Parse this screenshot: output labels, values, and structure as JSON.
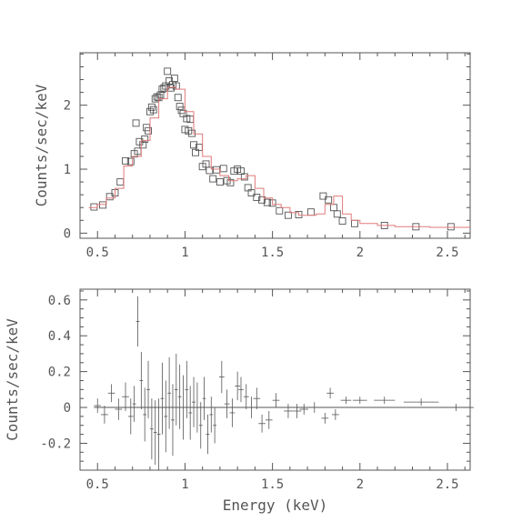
{
  "chart_data": [
    {
      "type": "scatter",
      "title": "",
      "xlabel": "",
      "ylabel": "Counts/sec/keV",
      "xlim": [
        0.4,
        2.63
      ],
      "ylim": [
        -0.08,
        2.82
      ],
      "xticks": [
        0.5,
        1,
        1.5,
        2,
        2.5
      ],
      "xtick_labels": [
        "0.5",
        "1",
        "1.5",
        "2",
        "2.5"
      ],
      "yticks": [
        0,
        1,
        2
      ],
      "ytick_labels": [
        "0",
        "1",
        "2"
      ],
      "series": [
        {
          "kind": "data-squares",
          "color": "#555555",
          "x": [
            0.48,
            0.53,
            0.57,
            0.6,
            0.63,
            0.66,
            0.69,
            0.71,
            0.72,
            0.73,
            0.74,
            0.76,
            0.77,
            0.78,
            0.79,
            0.8,
            0.81,
            0.82,
            0.83,
            0.84,
            0.85,
            0.86,
            0.87,
            0.88,
            0.89,
            0.9,
            0.91,
            0.92,
            0.93,
            0.94,
            0.95,
            0.96,
            0.97,
            0.98,
            0.99,
            1.0,
            1.01,
            1.02,
            1.03,
            1.04,
            1.05,
            1.06,
            1.08,
            1.1,
            1.12,
            1.14,
            1.16,
            1.18,
            1.2,
            1.22,
            1.24,
            1.26,
            1.28,
            1.3,
            1.32,
            1.34,
            1.36,
            1.38,
            1.41,
            1.44,
            1.47,
            1.5,
            1.54,
            1.59,
            1.65,
            1.72,
            1.79,
            1.82,
            1.85,
            1.87,
            1.9,
            1.97,
            2.14,
            2.32,
            2.52
          ],
          "y": [
            0.41,
            0.44,
            0.57,
            0.63,
            0.8,
            1.13,
            1.12,
            1.24,
            1.72,
            1.28,
            1.43,
            1.38,
            1.47,
            1.65,
            1.6,
            1.9,
            1.97,
            1.93,
            2.1,
            2.13,
            2.12,
            2.16,
            2.25,
            2.27,
            2.3,
            2.53,
            2.38,
            2.27,
            2.32,
            2.42,
            2.3,
            2.12,
            1.98,
            1.92,
            1.87,
            1.62,
            1.79,
            1.6,
            1.78,
            1.56,
            1.38,
            1.26,
            1.34,
            1.04,
            1.08,
            0.98,
            0.85,
            0.99,
            0.8,
            1.01,
            0.82,
            0.79,
            0.97,
            1.0,
            0.97,
            0.88,
            0.71,
            0.63,
            0.56,
            0.52,
            0.48,
            0.47,
            0.35,
            0.28,
            0.29,
            0.33,
            0.58,
            0.52,
            0.4,
            0.3,
            0.19,
            0.15,
            0.12,
            0.1,
            0.1
          ]
        },
        {
          "kind": "model-step",
          "color": "#e07a7a",
          "x": [
            0.45,
            0.5,
            0.55,
            0.6,
            0.65,
            0.7,
            0.75,
            0.8,
            0.85,
            0.9,
            0.95,
            1.0,
            1.05,
            1.1,
            1.15,
            1.2,
            1.25,
            1.3,
            1.35,
            1.4,
            1.45,
            1.5,
            1.55,
            1.6,
            1.65,
            1.7,
            1.75,
            1.8,
            1.85,
            1.9,
            1.95,
            2.0,
            2.1,
            2.2,
            2.3,
            2.4,
            2.5,
            2.63
          ],
          "y": [
            0.4,
            0.45,
            0.55,
            0.7,
            1.05,
            1.2,
            1.45,
            1.8,
            2.1,
            2.28,
            2.25,
            1.9,
            1.55,
            1.2,
            1.0,
            0.9,
            0.82,
            0.85,
            0.9,
            0.7,
            0.55,
            0.45,
            0.4,
            0.32,
            0.28,
            0.28,
            0.3,
            0.45,
            0.58,
            0.3,
            0.2,
            0.15,
            0.12,
            0.1,
            0.1,
            0.09,
            0.09,
            0.09
          ]
        }
      ]
    },
    {
      "type": "scatter",
      "title": "",
      "xlabel": "Energy (keV)",
      "ylabel": "Counts/sec/keV",
      "xlim": [
        0.4,
        2.63
      ],
      "ylim": [
        -0.35,
        0.66
      ],
      "xticks": [
        0.5,
        1,
        1.5,
        2,
        2.5
      ],
      "xtick_labels": [
        "0.5",
        "1",
        "1.5",
        "2",
        "2.5"
      ],
      "yticks": [
        -0.2,
        0,
        0.2,
        0.4,
        0.6
      ],
      "ytick_labels": [
        "-0.2",
        "0",
        "0.2",
        "0.4",
        "0.6"
      ],
      "zero_line": true,
      "series": [
        {
          "kind": "residuals",
          "color": "#555555",
          "x": [
            0.5,
            0.54,
            0.58,
            0.62,
            0.66,
            0.69,
            0.71,
            0.73,
            0.75,
            0.77,
            0.79,
            0.81,
            0.83,
            0.85,
            0.87,
            0.89,
            0.91,
            0.93,
            0.95,
            0.97,
            0.99,
            1.01,
            1.03,
            1.05,
            1.07,
            1.09,
            1.11,
            1.13,
            1.15,
            1.17,
            1.21,
            1.24,
            1.27,
            1.3,
            1.32,
            1.35,
            1.38,
            1.41,
            1.44,
            1.48,
            1.52,
            1.59,
            1.64,
            1.68,
            1.74,
            1.8,
            1.83,
            1.86,
            1.92,
            2.0,
            2.14,
            2.35,
            2.55
          ],
          "y": [
            0.01,
            -0.04,
            0.08,
            -0.01,
            0.06,
            -0.05,
            0.02,
            0.48,
            0.15,
            -0.04,
            0.1,
            -0.12,
            -0.14,
            -0.15,
            0.05,
            -0.05,
            0.08,
            -0.07,
            0.1,
            0.06,
            0.0,
            0.1,
            -0.03,
            0.03,
            0.0,
            -0.1,
            0.05,
            -0.15,
            -0.04,
            -0.1,
            0.17,
            0.02,
            -0.03,
            0.12,
            0.1,
            0.06,
            0.0,
            0.05,
            -0.09,
            -0.07,
            0.04,
            -0.02,
            -0.02,
            -0.01,
            0.0,
            -0.06,
            0.08,
            -0.04,
            0.04,
            0.04,
            0.04,
            0.03,
            0.0
          ],
          "err": [
            0.04,
            0.05,
            0.05,
            0.06,
            0.08,
            0.1,
            0.1,
            0.14,
            0.16,
            0.15,
            0.16,
            0.17,
            0.18,
            0.2,
            0.2,
            0.2,
            0.2,
            0.2,
            0.2,
            0.18,
            0.18,
            0.16,
            0.15,
            0.14,
            0.14,
            0.13,
            0.12,
            0.11,
            0.1,
            0.1,
            0.09,
            0.08,
            0.08,
            0.08,
            0.07,
            0.07,
            0.06,
            0.06,
            0.05,
            0.05,
            0.04,
            0.04,
            0.04,
            0.03,
            0.03,
            0.03,
            0.03,
            0.03,
            0.02,
            0.02,
            0.02,
            0.02,
            0.02
          ],
          "xerr": [
            0.02,
            0.02,
            0.02,
            0.02,
            0.02,
            0.015,
            0.01,
            0.01,
            0.01,
            0.01,
            0.01,
            0.01,
            0.01,
            0.01,
            0.01,
            0.01,
            0.01,
            0.01,
            0.01,
            0.01,
            0.01,
            0.01,
            0.01,
            0.01,
            0.01,
            0.01,
            0.01,
            0.01,
            0.01,
            0.01,
            0.015,
            0.015,
            0.015,
            0.015,
            0.015,
            0.015,
            0.015,
            0.02,
            0.02,
            0.02,
            0.02,
            0.025,
            0.025,
            0.025,
            0.03,
            0.02,
            0.02,
            0.02,
            0.03,
            0.04,
            0.06,
            0.1,
            0.1
          ]
        }
      ]
    }
  ]
}
